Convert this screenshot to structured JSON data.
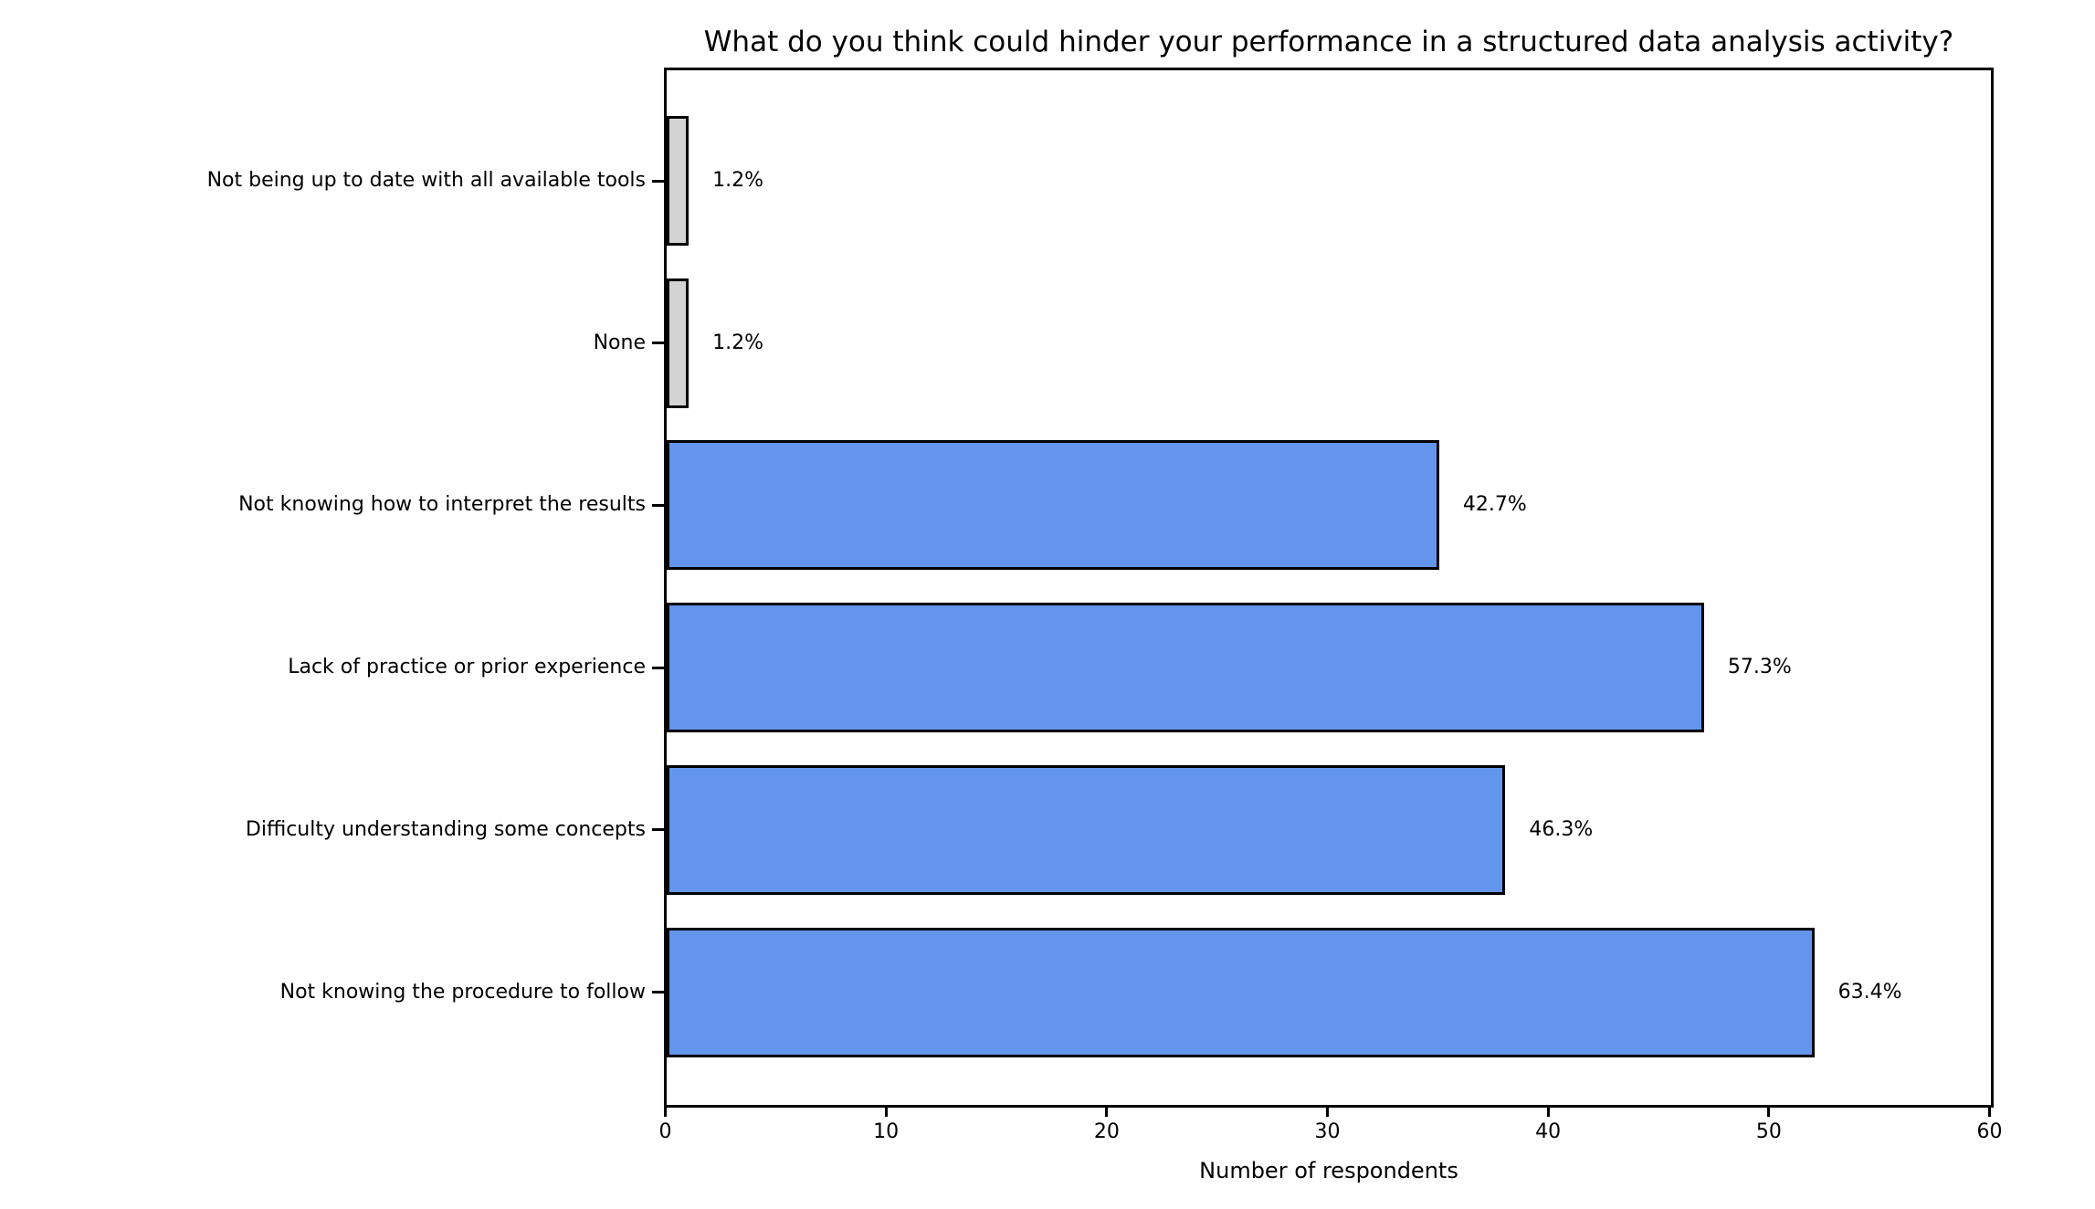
{
  "chart_data": {
    "type": "bar",
    "orientation": "horizontal",
    "title": "What do you think could hinder your performance in a structured data analysis activity?",
    "xlabel": "Number of respondents",
    "xlim": [
      0,
      60
    ],
    "xticks": [
      "0",
      "10",
      "20",
      "30",
      "40",
      "50",
      "60"
    ],
    "grid": false,
    "legend": null,
    "categories": [
      "Not being up to date with all available tools",
      "None",
      "Not knowing how to interpret the results",
      "Lack of practice or prior experience",
      "Difficulty understanding some concepts",
      "Not knowing the procedure to follow"
    ],
    "values": [
      1,
      1,
      35,
      47,
      38,
      52
    ],
    "bar_labels": [
      "1.2%",
      "1.2%",
      "42.7%",
      "57.3%",
      "46.3%",
      "63.4%"
    ],
    "bar_colors": [
      "#D3D3D3",
      "#D3D3D3",
      "#6495ED",
      "#6495ED",
      "#6495ED",
      "#6495ED"
    ],
    "edge_color": "#000000",
    "text_color": "#000000",
    "background_color": "#ffffff"
  }
}
